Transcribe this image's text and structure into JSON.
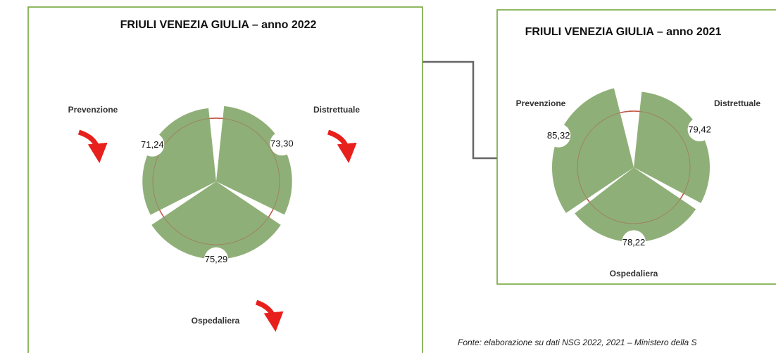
{
  "chart_data": [
    {
      "type": "polar",
      "title": "FRIULI VENEZIA GIULIA – anno 2022",
      "categories": [
        "Prevenzione",
        "Distrettuale",
        "Ospedaliera"
      ],
      "values": [
        71.24,
        73.3,
        75.29
      ],
      "value_labels": [
        "71,24",
        "73,30",
        "75,29"
      ],
      "color": "#8faf78",
      "rlim": [
        0,
        100
      ]
    },
    {
      "type": "polar",
      "title": "FRIULI VENEZIA GIULIA – anno 2021",
      "categories": [
        "Prevenzione",
        "Distrettuale",
        "Ospedaliera"
      ],
      "values": [
        85.32,
        79.42,
        78.22
      ],
      "value_labels": [
        "85,32",
        "79,42",
        "78,22"
      ],
      "color": "#8faf78",
      "rlim": [
        0,
        100
      ]
    }
  ],
  "note": "Fonte: elaborazione su dati NSG 2022, 2021 – Ministero della S"
}
